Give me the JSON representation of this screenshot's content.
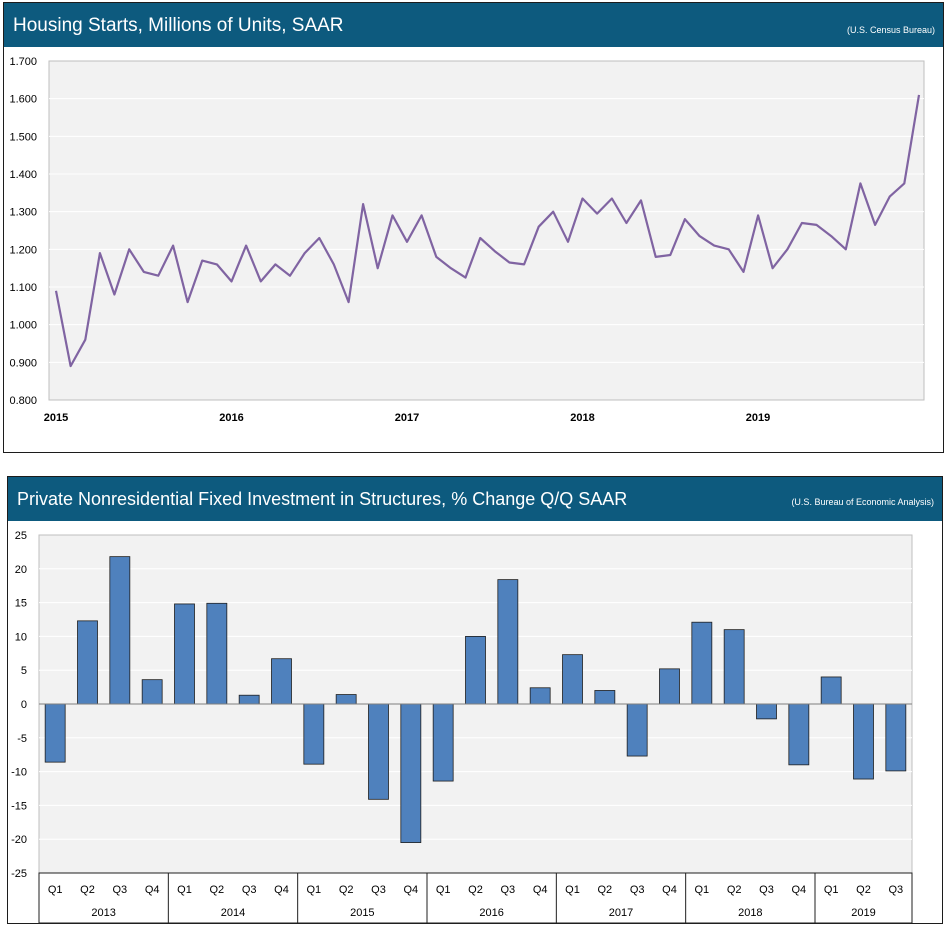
{
  "chart_data": [
    {
      "type": "line",
      "title": "Housing Starts, Millions of Units, SAAR",
      "source": "(U.S. Census Bureau)",
      "ylim": [
        0.8,
        1.7
      ],
      "yticks": [
        "1.700",
        "1.600",
        "1.500",
        "1.400",
        "1.300",
        "1.200",
        "1.100",
        "1.000",
        "0.900",
        "0.800"
      ],
      "xticks": [
        "2015",
        "2016",
        "2017",
        "2018",
        "2019"
      ],
      "xlim": [
        2015.0,
        2019.917
      ],
      "grid": true,
      "line_color": "#8064a2",
      "series": [
        {
          "x": [
            2015.0,
            2015.083,
            2015.167,
            2015.25,
            2015.333,
            2015.417,
            2015.5,
            2015.583,
            2015.667,
            2015.75,
            2015.833,
            2015.917,
            2016.0,
            2016.083,
            2016.167,
            2016.25,
            2016.333,
            2016.417,
            2016.5,
            2016.583,
            2016.667,
            2016.75,
            2016.833,
            2016.917,
            2017.0,
            2017.083,
            2017.167,
            2017.25,
            2017.333,
            2017.417,
            2017.5,
            2017.583,
            2017.667,
            2017.75,
            2017.833,
            2017.917,
            2018.0,
            2018.083,
            2018.167,
            2018.25,
            2018.333,
            2018.417,
            2018.5,
            2018.583,
            2018.667,
            2018.75,
            2018.833,
            2018.917,
            2019.0,
            2019.083,
            2019.167,
            2019.25,
            2019.333,
            2019.417,
            2019.5,
            2019.583,
            2019.667,
            2019.75,
            2019.833,
            2019.917
          ],
          "y": [
            1.09,
            0.89,
            0.96,
            1.19,
            1.08,
            1.2,
            1.14,
            1.13,
            1.21,
            1.06,
            1.17,
            1.16,
            1.115,
            1.21,
            1.115,
            1.16,
            1.13,
            1.19,
            1.23,
            1.16,
            1.06,
            1.32,
            1.15,
            1.29,
            1.22,
            1.29,
            1.18,
            1.15,
            1.125,
            1.23,
            1.195,
            1.165,
            1.16,
            1.26,
            1.3,
            1.22,
            1.335,
            1.295,
            1.335,
            1.27,
            1.33,
            1.18,
            1.185,
            1.28,
            1.235,
            1.21,
            1.2,
            1.14,
            1.29,
            1.15,
            1.2,
            1.27,
            1.265,
            1.235,
            1.2,
            1.375,
            1.265,
            1.34,
            1.375,
            1.61
          ]
        }
      ]
    },
    {
      "type": "bar",
      "title": "Private Nonresidential Fixed Investment in Structures, % Change Q/Q SAAR",
      "source": "(U.S. Bureau of Economic Analysis)",
      "ylim": [
        -25,
        25
      ],
      "yticks": [
        "25",
        "20",
        "15",
        "10",
        "5",
        "0",
        "-5",
        "-10",
        "-15",
        "-20",
        "-25"
      ],
      "grid": true,
      "bar_color": "#4f81bd",
      "categories": [
        "Q1",
        "Q2",
        "Q3",
        "Q4",
        "Q1",
        "Q2",
        "Q3",
        "Q4",
        "Q1",
        "Q2",
        "Q3",
        "Q4",
        "Q1",
        "Q2",
        "Q3",
        "Q4",
        "Q1",
        "Q2",
        "Q3",
        "Q4",
        "Q1",
        "Q2",
        "Q3",
        "Q4",
        "Q1",
        "Q2",
        "Q3"
      ],
      "years": [
        "2013",
        "2014",
        "2015",
        "2016",
        "2017",
        "2018",
        "2019"
      ],
      "values": [
        -8.6,
        12.3,
        21.8,
        3.6,
        14.8,
        14.9,
        1.3,
        6.7,
        -8.9,
        1.4,
        -14.1,
        -20.5,
        -11.4,
        10.0,
        18.4,
        2.4,
        7.3,
        2.0,
        -7.7,
        5.2,
        12.1,
        11.0,
        -2.2,
        -9.0,
        4.0,
        -11.1,
        -9.9
      ]
    }
  ]
}
